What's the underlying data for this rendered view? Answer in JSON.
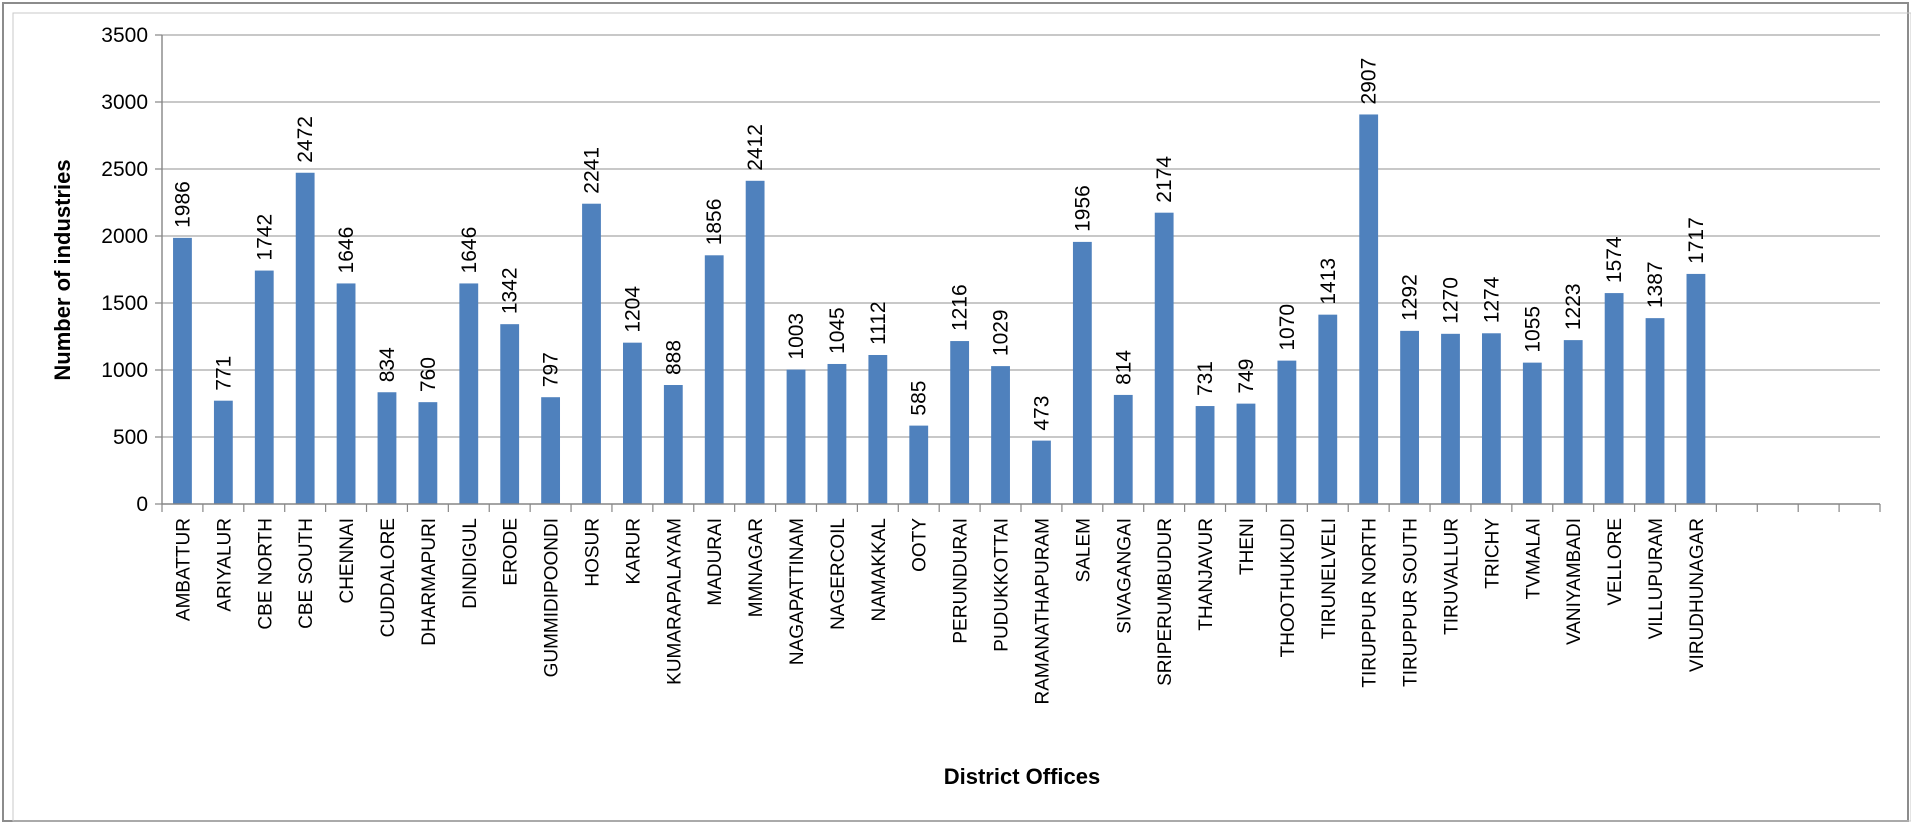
{
  "chart_data": {
    "type": "bar",
    "xlabel": "District Offices",
    "ylabel": "Number of industries",
    "ylim": [
      0,
      3500
    ],
    "yticks": [
      0,
      500,
      1000,
      1500,
      2000,
      2500,
      3000,
      3500
    ],
    "grid": true,
    "legend": "none",
    "bar_color": "#4F81BD",
    "categories": [
      "AMBATTUR",
      "ARIYALUR",
      "CBE NORTH",
      "CBE SOUTH",
      "CHENNAI",
      "CUDDALORE",
      "DHARMAPURI",
      "DINDIGUL",
      "ERODE",
      "GUMMIDIPOONDI",
      "HOSUR",
      "KARUR",
      "KUMARAPALAYAM",
      "MADURAI",
      "MMNAGAR",
      "NAGAPATTINAM",
      "NAGERCOIL",
      "NAMAKKAL",
      "OOTY",
      "PERUNDURAI",
      "PUDUKKOTTAI",
      "RAMANATHAPURAM",
      "SALEM",
      "SIVAGANGAI",
      "SRIPERUMBUDUR",
      "THANJAVUR",
      "THENI",
      "THOOTHUKUDI",
      "TIRUNELVELI",
      "TIRUPPUR NORTH",
      "TIRUPPUR SOUTH",
      "TIRUVALLUR",
      "TRICHY",
      "TVMALAI",
      "VANIYAMBADI",
      "VELLORE",
      "VILLUPURAM",
      "VIRUDHUNAGAR",
      "",
      "",
      "",
      ""
    ],
    "values": [
      1986,
      771,
      1742,
      2472,
      1646,
      834,
      760,
      1646,
      1342,
      797,
      2241,
      1204,
      888,
      1856,
      2412,
      1003,
      1045,
      1112,
      585,
      1216,
      1029,
      473,
      1956,
      814,
      2174,
      731,
      749,
      1070,
      1413,
      2907,
      1292,
      1270,
      1274,
      1055,
      1223,
      1574,
      1387,
      1717,
      null,
      null,
      null,
      null
    ]
  }
}
